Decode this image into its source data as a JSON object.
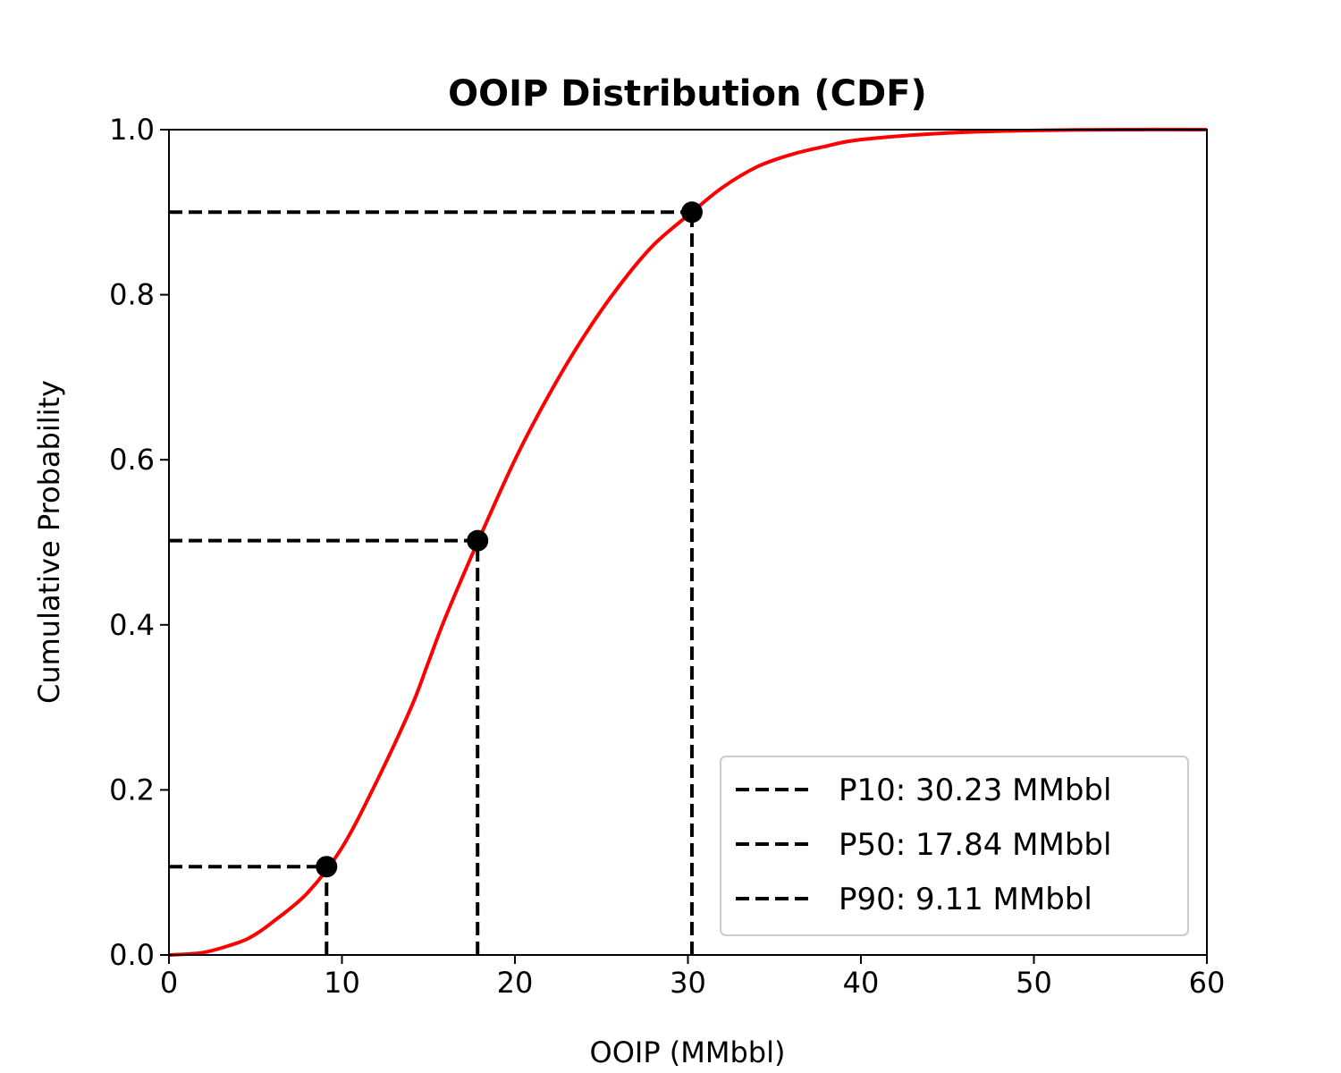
{
  "chart_data": {
    "type": "line",
    "title": "OOIP Distribution (CDF)",
    "xlabel": "OOIP (MMbbl)",
    "ylabel": "Cumulative Probability",
    "xlim": [
      0,
      60
    ],
    "ylim": [
      0,
      1.0
    ],
    "x_ticks": [
      "0",
      "10",
      "20",
      "30",
      "40",
      "50",
      "60"
    ],
    "y_ticks": [
      "0.0",
      "0.2",
      "0.4",
      "0.6",
      "0.8",
      "1.0"
    ],
    "grid": false,
    "legend_position": "lower-right",
    "series": [
      {
        "color": "#ff0000",
        "x": [
          0,
          2,
          4,
          5,
          6,
          8,
          10,
          12,
          14,
          15,
          16,
          17.84,
          20,
          22,
          24,
          26,
          28,
          30.23,
          32,
          34,
          36,
          38,
          40,
          45,
          50,
          55,
          60
        ],
        "y": [
          0.0,
          0.003,
          0.015,
          0.025,
          0.04,
          0.075,
          0.13,
          0.21,
          0.3,
          0.355,
          0.41,
          0.5,
          0.6,
          0.68,
          0.75,
          0.81,
          0.86,
          0.9,
          0.93,
          0.955,
          0.97,
          0.98,
          0.988,
          0.996,
          0.999,
          1.0,
          1.0
        ]
      }
    ],
    "markers": [
      {
        "label": "P10: 30.23 MMbbl",
        "x": 30.23,
        "y": 0.9
      },
      {
        "label": "P50: 17.84 MMbbl",
        "x": 17.84,
        "y": 0.502
      },
      {
        "label": "P90: 9.11 MMbbl",
        "x": 9.11,
        "y": 0.107
      }
    ],
    "colors": {
      "curve": "#ff0000",
      "markers": "#000000",
      "axes": "#000000",
      "legend_border": "#cccccc"
    }
  }
}
